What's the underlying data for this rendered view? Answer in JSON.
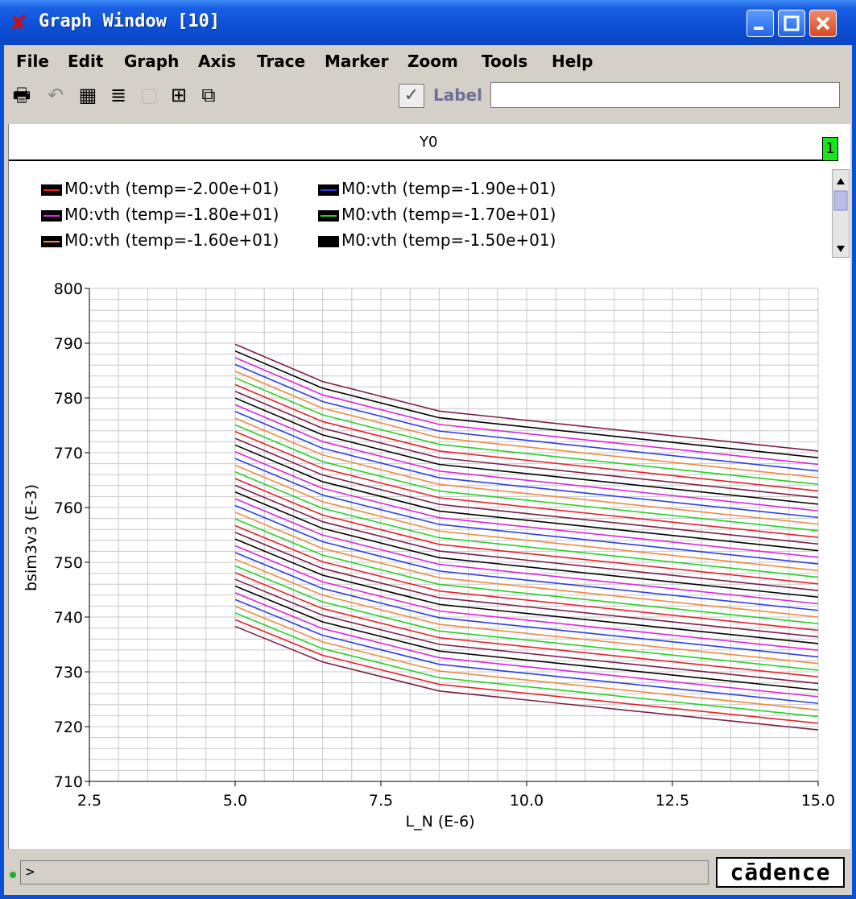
{
  "window": {
    "title": "Graph Window [10]"
  },
  "menu": [
    "File",
    "Edit",
    "Graph",
    "Axis",
    "Trace",
    "Marker",
    "Zoom",
    "Tools",
    "Help"
  ],
  "toolbar": {
    "icons": [
      "print-icon",
      "undo-icon",
      "grid-icon",
      "list-icon",
      "blank-icon",
      "fit-icon",
      "window-icon"
    ],
    "label_checkbox": "Label",
    "label_value": ""
  },
  "graph": {
    "header": "Y0",
    "badge": "1"
  },
  "legend": [
    {
      "name": "M0:vth (temp=-2.00e+01)",
      "color": "#e8202a"
    },
    {
      "name": "M0:vth (temp=-1.90e+01)",
      "color": "#2a3fe6"
    },
    {
      "name": "M0:vth (temp=-1.80e+01)",
      "color": "#d828d8"
    },
    {
      "name": "M0:vth (temp=-1.70e+01)",
      "color": "#28d028"
    },
    {
      "name": "M0:vth (temp=-1.60e+01)",
      "color": "#f08a40"
    },
    {
      "name": "M0:vth (temp=-1.50e+01)",
      "color": "#000000"
    }
  ],
  "chart_data": {
    "type": "line",
    "xlabel": "L_N (E-6)",
    "ylabel": "bsim3v3 (E-3)",
    "xlim": [
      2.5,
      15.0
    ],
    "ylim": [
      710,
      800
    ],
    "x_ticks": [
      "2.5",
      "5.0",
      "7.5",
      "10.0",
      "12.5",
      "15.0"
    ],
    "y_ticks": [
      "710",
      "720",
      "730",
      "740",
      "750",
      "760",
      "770",
      "780",
      "790",
      "800"
    ],
    "grid": true,
    "legend_position": "top-left",
    "x": [
      5.0,
      6.5,
      8.5,
      15.0
    ],
    "series_lowest": [
      738.3,
      731.8,
      726.5,
      719.4
    ],
    "series_highest": [
      789.8,
      783.0,
      777.6,
      770.3
    ],
    "series_count": 43,
    "line_colors": [
      "#7a1f4a",
      "#e8202a",
      "#28d028",
      "#f08a40",
      "#2a3fe6",
      "#d828d8",
      "#000000"
    ]
  },
  "status": {
    "prompt": ">",
    "logo": "cādence"
  }
}
